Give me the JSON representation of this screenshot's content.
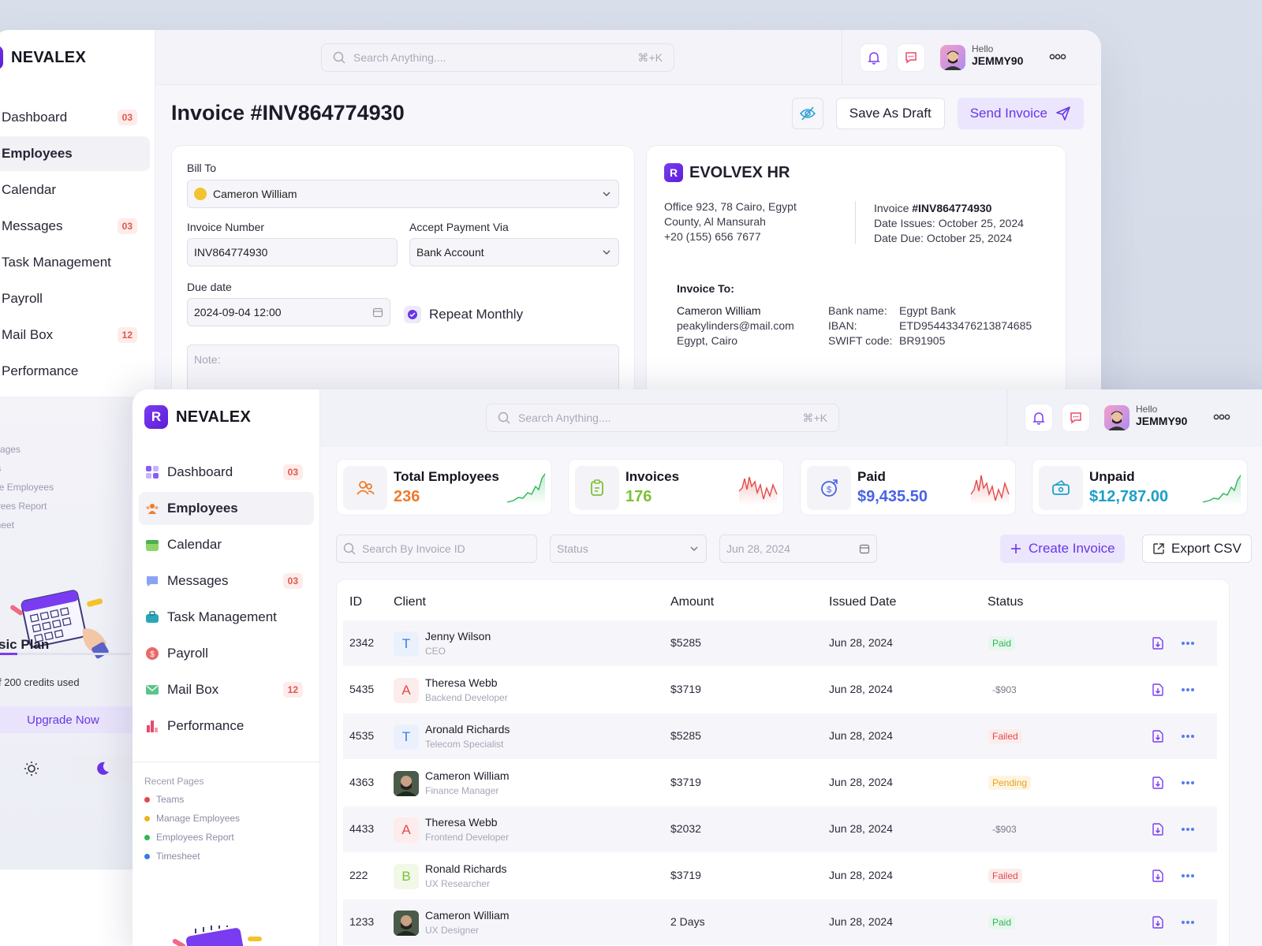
{
  "colors": {
    "brand": "#6a35e8",
    "paid": "#2fb55a",
    "failed": "#e24a4a",
    "pending": "#e8a21c",
    "invoices_accent": "#7cc232",
    "paid_accent": "#4a62e2",
    "unpaid_accent": "#1c9fc9",
    "employees_accent": "#f07a2a"
  },
  "back": {
    "brand": "NEVALEX",
    "search": {
      "placeholder": "Search Anything....",
      "shortcut": "⌘+K"
    },
    "user": {
      "greeting": "Hello",
      "name": "JEMMY90"
    },
    "nav": [
      {
        "label": "Dashboard",
        "badge": "03"
      },
      {
        "label": "Employees",
        "badge": ""
      },
      {
        "label": "Calendar",
        "badge": ""
      },
      {
        "label": "Messages",
        "badge": "03"
      },
      {
        "label": "Task Management",
        "badge": ""
      },
      {
        "label": "Payroll",
        "badge": ""
      },
      {
        "label": "Mail Box",
        "badge": "12"
      },
      {
        "label": "Performance",
        "badge": ""
      }
    ],
    "recent": [
      "ent Pages",
      "eams",
      "anage Employees",
      "nployees Report",
      "mesheet"
    ],
    "plan": {
      "title": "sic Plan",
      "credits": "f 200 credits used",
      "upgrade": "Upgrade Now"
    },
    "invoice": {
      "title": "Invoice #INV864774930",
      "save_draft": "Save As Draft",
      "send": "Send Invoice",
      "bill_to_label": "Bill To",
      "bill_to_value": "Cameron William",
      "invoice_number_label": "Invoice Number",
      "invoice_number_value": "INV864774930",
      "payment_label": "Accept Payment Via",
      "payment_value": "Bank Account",
      "due_label": "Due date",
      "due_value": "2024-09-04 12:00",
      "repeat_label": "Repeat Monthly",
      "note_placeholder": "Note:"
    },
    "preview": {
      "company": "EVOLVEX HR",
      "address1": "Office 923, 78 Cairo, Egypt",
      "address2": "County, Al Mansurah",
      "phone": "+20 (155) 656 7677",
      "invoice_prefix": "Invoice ",
      "invoice_no": "#INV864774930",
      "date_issued": "Date Issues: October 25, 2024",
      "date_due": "Date Due: October 25, 2024",
      "invoice_to_label": "Invoice To:",
      "to_name": "Cameron William",
      "to_email": "peakylinders@mail.com",
      "to_city": "Egypt, Cairo",
      "bank_name_label": "Bank name:",
      "bank_name": "Egypt Bank",
      "iban_label": "IBAN:",
      "iban": "ETD954433476213874685",
      "swift_label": "SWIFT code:",
      "swift": "BR91905"
    }
  },
  "front": {
    "brand": "NEVALEX",
    "search": {
      "placeholder": "Search Anything....",
      "shortcut": "⌘+K"
    },
    "user": {
      "greeting": "Hello",
      "name": "JEMMY90"
    },
    "nav": [
      {
        "label": "Dashboard",
        "badge": "03",
        "icon": "dashboard-icon"
      },
      {
        "label": "Employees",
        "badge": "",
        "icon": "employees-icon"
      },
      {
        "label": "Calendar",
        "badge": "",
        "icon": "calendar-icon"
      },
      {
        "label": "Messages",
        "badge": "03",
        "icon": "messages-icon"
      },
      {
        "label": "Task Management",
        "badge": "",
        "icon": "task-icon"
      },
      {
        "label": "Payroll",
        "badge": "",
        "icon": "payroll-icon"
      },
      {
        "label": "Mail Box",
        "badge": "12",
        "icon": "mail-icon"
      },
      {
        "label": "Performance",
        "badge": "",
        "icon": "performance-icon"
      }
    ],
    "recent_title": "Recent Pages",
    "recent": [
      {
        "label": "Teams",
        "color": "#e24a4a"
      },
      {
        "label": "Manage Employees",
        "color": "#f2b01e"
      },
      {
        "label": "Employees Report",
        "color": "#2fb55a"
      },
      {
        "label": "Timesheet",
        "color": "#3b7be0"
      }
    ],
    "stats": [
      {
        "label": "Total Employees",
        "value": "236",
        "color": "#f07a2a",
        "trend": "up"
      },
      {
        "label": "Invoices",
        "value": "176",
        "color": "#7cc232",
        "trend": "down"
      },
      {
        "label": "Paid",
        "value": "$9,435.50",
        "color": "#4a62e2",
        "trend": "down"
      },
      {
        "label": "Unpaid",
        "value": "$12,787.00",
        "color": "#1c9fc9",
        "trend": "up"
      }
    ],
    "filters": {
      "search_placeholder": "Search By Invoice ID",
      "status_placeholder": "Status",
      "date_value": "Jun 28, 2024",
      "create": "Create Invoice",
      "export": "Export CSV"
    },
    "table": {
      "headers": {
        "id": "ID",
        "client": "Client",
        "amount": "Amount",
        "issued": "Issued Date",
        "status": "Status"
      },
      "rows": [
        {
          "id": "2342",
          "initial": "T",
          "avatar": "letter",
          "avatar_color": "#3b7be0",
          "avatar_bg": "#eaf1fd",
          "name": "Jenny Wilson",
          "role": "CEO",
          "amount": "$5285",
          "date": "Jun 28, 2024",
          "status": "Paid",
          "status_type": "paid"
        },
        {
          "id": "5435",
          "initial": "A",
          "avatar": "letter",
          "avatar_color": "#e24a4a",
          "avatar_bg": "#fdecec",
          "name": "Theresa Webb",
          "role": "Backend Developer",
          "amount": "$3719",
          "date": "Jun 28, 2024",
          "status": "-$903",
          "status_type": "neutral"
        },
        {
          "id": "4535",
          "initial": "T",
          "avatar": "letter",
          "avatar_color": "#3b7be0",
          "avatar_bg": "#eaf1fd",
          "name": "Aronald Richards",
          "role": "Telecom Specialist",
          "amount": "$5285",
          "date": "Jun 28, 2024",
          "status": "Failed",
          "status_type": "failed"
        },
        {
          "id": "4363",
          "initial": "",
          "avatar": "photo",
          "avatar_color": "#fff",
          "avatar_bg": "#3a4a3a",
          "name": "Cameron William",
          "role": "Finance Manager",
          "amount": "$3719",
          "date": "Jun 28, 2024",
          "status": "Pending",
          "status_type": "pending"
        },
        {
          "id": "4433",
          "initial": "A",
          "avatar": "letter",
          "avatar_color": "#e24a4a",
          "avatar_bg": "#fdecec",
          "name": "Theresa Webb",
          "role": "Frontend Developer",
          "amount": "$2032",
          "date": "Jun 28, 2024",
          "status": "-$903",
          "status_type": "neutral"
        },
        {
          "id": "222",
          "initial": "B",
          "avatar": "letter",
          "avatar_color": "#7cc232",
          "avatar_bg": "#f1f8e8",
          "name": "Ronald Richards",
          "role": "UX Researcher",
          "amount": "$3719",
          "date": "Jun 28, 2024",
          "status": "Failed",
          "status_type": "failed"
        },
        {
          "id": "1233",
          "initial": "",
          "avatar": "photo",
          "avatar_color": "#fff",
          "avatar_bg": "#3a4a3a",
          "name": "Cameron William",
          "role": "UX Designer",
          "amount": "2 Days",
          "date": "Jun 28, 2024",
          "status": "Paid",
          "status_type": "paid"
        }
      ]
    }
  }
}
